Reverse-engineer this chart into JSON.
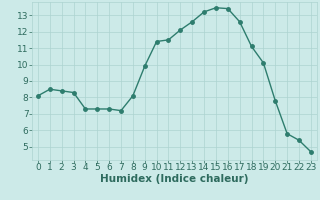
{
  "xlabel": "Humidex (Indice chaleur)",
  "x": [
    0,
    1,
    2,
    3,
    4,
    5,
    6,
    7,
    8,
    9,
    10,
    11,
    12,
    13,
    14,
    15,
    16,
    17,
    18,
    19,
    20,
    21,
    22,
    23
  ],
  "y": [
    8.1,
    8.5,
    8.4,
    8.3,
    7.3,
    7.3,
    7.3,
    7.2,
    8.1,
    9.9,
    11.4,
    11.5,
    12.1,
    12.6,
    13.2,
    13.45,
    13.4,
    12.6,
    11.1,
    10.1,
    7.8,
    5.8,
    5.4,
    4.7
  ],
  "line_color": "#2e7d6e",
  "marker": "o",
  "marker_size": 2.5,
  "bg_color": "#cceae8",
  "grid_color": "#add4d1",
  "tick_label_color": "#2e6b5e",
  "axis_label_color": "#2e6b5e",
  "ylim": [
    4.2,
    13.8
  ],
  "xlim": [
    -0.5,
    23.5
  ],
  "yticks": [
    5,
    6,
    7,
    8,
    9,
    10,
    11,
    12,
    13
  ],
  "xticks": [
    0,
    1,
    2,
    3,
    4,
    5,
    6,
    7,
    8,
    9,
    10,
    11,
    12,
    13,
    14,
    15,
    16,
    17,
    18,
    19,
    20,
    21,
    22,
    23
  ],
  "label_fontsize": 7.5,
  "tick_fontsize": 6.5
}
